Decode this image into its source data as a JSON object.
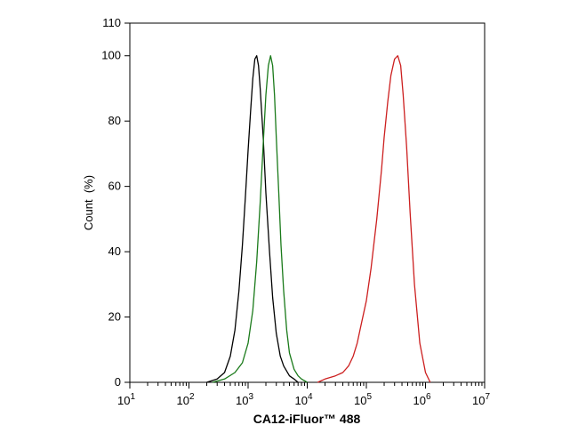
{
  "chart_data": {
    "type": "line",
    "title": "",
    "xlabel": "CA12-iFluor™ 488",
    "ylabel": "Count  (%)",
    "xscale": "log",
    "xlim": [
      10,
      10000000
    ],
    "ylim": [
      0,
      110
    ],
    "grid": false,
    "x_ticks": [
      {
        "base": "10",
        "exp": "1",
        "value": 10
      },
      {
        "base": "10",
        "exp": "2",
        "value": 100
      },
      {
        "base": "10",
        "exp": "3",
        "value": 1000
      },
      {
        "base": "10",
        "exp": "4",
        "value": 10000
      },
      {
        "base": "10",
        "exp": "5",
        "value": 100000
      },
      {
        "base": "10",
        "exp": "6",
        "value": 1000000
      },
      {
        "base": "10",
        "exp": "7",
        "value": 10000000
      }
    ],
    "y_ticks": [
      "0",
      "20",
      "40",
      "60",
      "80",
      "100",
      "110"
    ],
    "y_tick_values": [
      0,
      20,
      40,
      60,
      80,
      100,
      110
    ],
    "series": [
      {
        "color": "#000000",
        "x": [
          200,
          300,
          400,
          500,
          600,
          700,
          800,
          900,
          1000,
          1100,
          1200,
          1300,
          1400,
          1500,
          1600,
          1800,
          2000,
          2300,
          2600,
          3000,
          3500,
          4000,
          5000,
          6000,
          7000
        ],
        "y": [
          0,
          1,
          3,
          8,
          16,
          28,
          42,
          57,
          71,
          83,
          93,
          99,
          100,
          97,
          90,
          75,
          58,
          40,
          26,
          15,
          8,
          5,
          2,
          1,
          0
        ]
      },
      {
        "color": "#1a7a1a",
        "x": [
          250,
          400,
          600,
          800,
          1000,
          1200,
          1400,
          1600,
          1800,
          2000,
          2200,
          2400,
          2600,
          2800,
          3000,
          3300,
          3600,
          4000,
          4500,
          5000,
          6000,
          7000,
          8000,
          10000
        ],
        "y": [
          0,
          1,
          3,
          6,
          12,
          22,
          37,
          55,
          73,
          88,
          97,
          100,
          97,
          88,
          75,
          58,
          42,
          28,
          16,
          9,
          4,
          2,
          1,
          0
        ]
      },
      {
        "color": "#cc1f1f",
        "x": [
          15000,
          20000,
          30000,
          40000,
          50000,
          60000,
          70000,
          80000,
          100000,
          120000,
          150000,
          180000,
          200000,
          230000,
          260000,
          300000,
          340000,
          380000,
          420000,
          480000,
          550000,
          650000,
          800000,
          1000000,
          1200000
        ],
        "y": [
          0,
          1,
          2,
          3,
          5,
          8,
          12,
          17,
          25,
          35,
          50,
          65,
          75,
          86,
          94,
          99,
          100,
          97,
          88,
          72,
          52,
          30,
          12,
          3,
          0
        ]
      }
    ]
  }
}
